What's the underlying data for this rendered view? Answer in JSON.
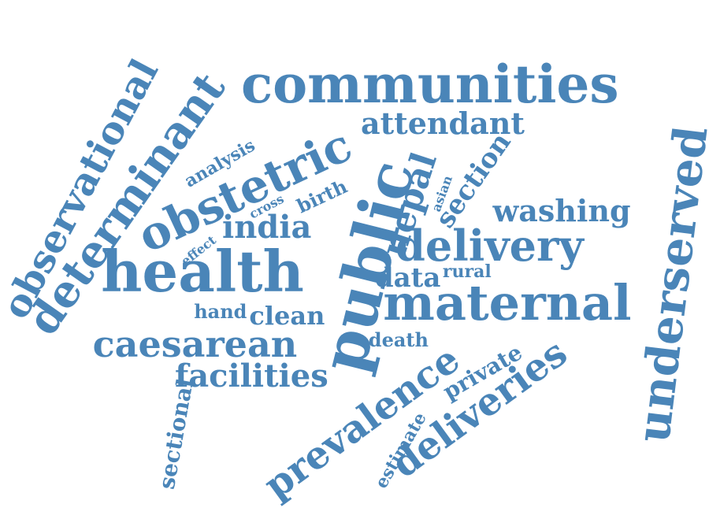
{
  "word_cloud": {
    "color": "#4a85b8",
    "words": [
      {
        "text": "public"
      },
      {
        "text": "health"
      },
      {
        "text": "communities"
      },
      {
        "text": "maternal"
      },
      {
        "text": "obstetric"
      },
      {
        "text": "determinant"
      },
      {
        "text": "observational"
      },
      {
        "text": "underserved"
      },
      {
        "text": "prevalence"
      },
      {
        "text": "deliveries"
      },
      {
        "text": "delivery"
      },
      {
        "text": "caesarean"
      },
      {
        "text": "facilities"
      },
      {
        "text": "washing"
      },
      {
        "text": "attendant"
      },
      {
        "text": "nepal"
      },
      {
        "text": "india"
      },
      {
        "text": "section"
      },
      {
        "text": "clean"
      },
      {
        "text": "data"
      },
      {
        "text": "private"
      },
      {
        "text": "analysis"
      },
      {
        "text": "birth"
      },
      {
        "text": "hand"
      },
      {
        "text": "death"
      },
      {
        "text": "sectional"
      },
      {
        "text": "estimate"
      },
      {
        "text": "rural"
      },
      {
        "text": "effect"
      },
      {
        "text": "cross"
      },
      {
        "text": "asian"
      }
    ]
  }
}
